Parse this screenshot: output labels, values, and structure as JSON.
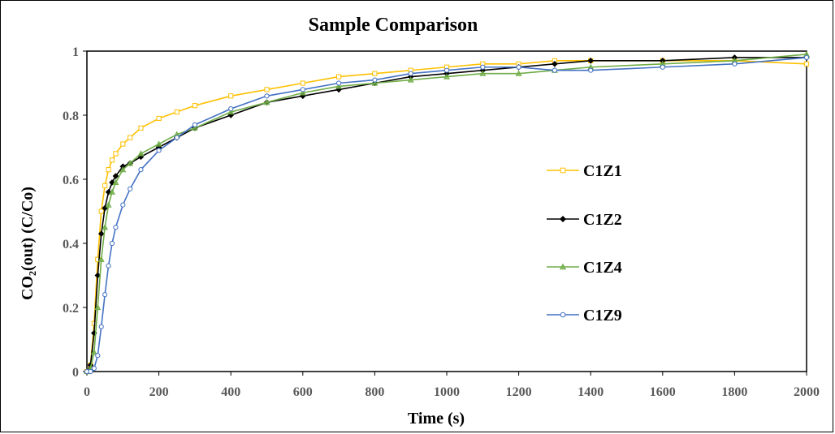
{
  "chart_data": {
    "type": "line",
    "title": "Sample Comparison",
    "xlabel": "Time (s)",
    "ylabel": "CO₂(out) (C/Co)",
    "xlim": [
      0,
      2000
    ],
    "ylim": [
      0,
      1
    ],
    "x_ticks": [
      "0",
      "200",
      "400",
      "600",
      "800",
      "1000",
      "1200",
      "1400",
      "1600",
      "1800",
      "2000"
    ],
    "y_ticks": [
      "0",
      "0.2",
      "0.4",
      "0.6",
      "0.8",
      "1"
    ],
    "grid": false,
    "legend_position": "right",
    "series": [
      {
        "name": "C1Z1",
        "color": "#FFC000",
        "marker": "square",
        "x": [
          0,
          10,
          20,
          30,
          40,
          50,
          60,
          70,
          80,
          100,
          120,
          150,
          200,
          250,
          300,
          400,
          500,
          600,
          700,
          800,
          900,
          1000,
          1100,
          1200,
          1300,
          1400,
          1600,
          1800,
          2000
        ],
        "values": [
          0,
          0.02,
          0.15,
          0.35,
          0.5,
          0.58,
          0.63,
          0.66,
          0.68,
          0.71,
          0.73,
          0.76,
          0.79,
          0.81,
          0.83,
          0.86,
          0.88,
          0.9,
          0.92,
          0.93,
          0.94,
          0.95,
          0.96,
          0.96,
          0.97,
          0.97,
          0.97,
          0.97,
          0.96
        ]
      },
      {
        "name": "C1Z2",
        "color": "#000000",
        "marker": "diamond",
        "x": [
          0,
          10,
          20,
          30,
          40,
          50,
          60,
          70,
          80,
          100,
          120,
          150,
          200,
          250,
          300,
          400,
          500,
          600,
          700,
          800,
          900,
          1000,
          1100,
          1200,
          1300,
          1400,
          1600,
          1800,
          2000
        ],
        "values": [
          0,
          0.02,
          0.12,
          0.3,
          0.43,
          0.51,
          0.56,
          0.59,
          0.61,
          0.64,
          0.65,
          0.67,
          0.7,
          0.73,
          0.76,
          0.8,
          0.84,
          0.86,
          0.88,
          0.9,
          0.92,
          0.93,
          0.94,
          0.95,
          0.96,
          0.97,
          0.97,
          0.98,
          0.98
        ]
      },
      {
        "name": "C1Z4",
        "color": "#70AD47",
        "marker": "triangle",
        "x": [
          0,
          10,
          20,
          30,
          40,
          50,
          60,
          70,
          80,
          100,
          120,
          150,
          200,
          250,
          300,
          400,
          500,
          600,
          700,
          800,
          900,
          1000,
          1100,
          1200,
          1300,
          1400,
          1600,
          1800,
          2000
        ],
        "values": [
          0,
          0.01,
          0.06,
          0.2,
          0.35,
          0.45,
          0.52,
          0.56,
          0.59,
          0.63,
          0.65,
          0.68,
          0.71,
          0.74,
          0.76,
          0.81,
          0.84,
          0.87,
          0.89,
          0.9,
          0.91,
          0.92,
          0.93,
          0.93,
          0.94,
          0.95,
          0.96,
          0.97,
          0.99
        ]
      },
      {
        "name": "C1Z9",
        "color": "#4472C4",
        "marker": "circle",
        "x": [
          0,
          10,
          20,
          30,
          40,
          50,
          60,
          70,
          80,
          100,
          120,
          150,
          200,
          250,
          300,
          400,
          500,
          600,
          700,
          800,
          900,
          1000,
          1100,
          1200,
          1300,
          1400,
          1600,
          1800,
          2000
        ],
        "values": [
          0,
          0.0,
          0.01,
          0.05,
          0.14,
          0.24,
          0.33,
          0.4,
          0.45,
          0.52,
          0.57,
          0.63,
          0.69,
          0.73,
          0.77,
          0.82,
          0.86,
          0.88,
          0.9,
          0.91,
          0.93,
          0.94,
          0.95,
          0.95,
          0.94,
          0.94,
          0.95,
          0.96,
          0.98
        ]
      }
    ]
  }
}
